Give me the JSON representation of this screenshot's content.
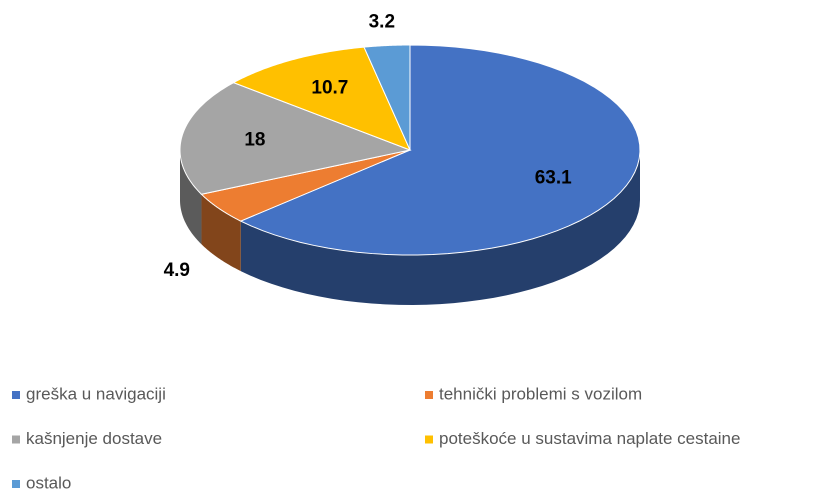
{
  "chart_data": {
    "type": "pie",
    "categories": [
      "greška u navigaciji",
      "tehnički problemi s vozilom",
      "kašnjenje dostave",
      "poteškoće u sustavima naplate cestaine",
      "ostalo"
    ],
    "values": [
      63.1,
      4.9,
      18,
      10.7,
      3.2
    ],
    "colors": [
      "#4472c4",
      "#ed7d31",
      "#a5a5a5",
      "#ffc000",
      "#5b9bd5"
    ],
    "legend": "bottom"
  }
}
